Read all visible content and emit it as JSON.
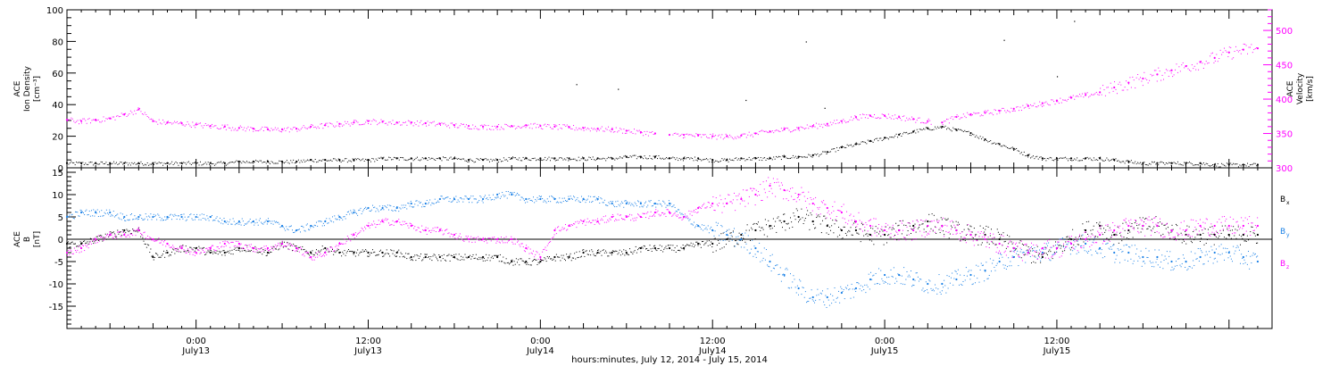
{
  "chart_data": [
    {
      "type": "scatter",
      "panel": "top",
      "ylabel_lines": [
        "ACE",
        "Ion Density",
        "[cm⁻³]"
      ],
      "ylim": [
        0,
        100
      ],
      "yticks": [
        0,
        20,
        40,
        60,
        80,
        100
      ],
      "y2label_lines": [
        "ACE",
        "Velocity",
        "[km/s]"
      ],
      "y2lim": [
        300,
        530
      ],
      "y2ticks": [
        300,
        350,
        400,
        450,
        500
      ],
      "grid": false,
      "xlim_hours": [
        0,
        84
      ],
      "series": [
        {
          "name": "Ion Density",
          "axis": "left",
          "color": "#000000",
          "x": [
            0,
            1,
            2,
            3,
            4,
            5,
            6,
            7,
            8,
            9,
            10,
            11,
            12,
            13,
            14,
            15,
            16,
            17,
            18,
            19,
            20,
            21,
            22,
            23,
            24,
            25,
            26,
            27,
            28,
            29,
            30,
            31,
            32,
            33,
            34,
            35,
            36,
            37,
            38,
            39,
            40,
            41,
            42,
            43,
            44,
            45,
            46,
            47,
            48,
            49,
            50,
            51,
            52,
            53,
            54,
            55,
            56,
            57,
            58,
            59,
            60,
            61,
            62,
            63,
            64,
            65,
            66,
            67,
            68,
            69,
            70,
            71,
            72,
            73,
            74,
            75,
            76,
            77,
            78,
            79,
            80,
            81,
            82,
            83
          ],
          "y": [
            3,
            3,
            3,
            3,
            3,
            3,
            3,
            3,
            3,
            3,
            3,
            3,
            4,
            4,
            4,
            4,
            4,
            5,
            5,
            5,
            5,
            5,
            6,
            6,
            6,
            6,
            6,
            6,
            5,
            5,
            5,
            6,
            6,
            6,
            6,
            6,
            6,
            6,
            6,
            7,
            7,
            7,
            6,
            6,
            6,
            5,
            5,
            6,
            6,
            6,
            7,
            7,
            8,
            10,
            13,
            15,
            17,
            19,
            21,
            23,
            25,
            26,
            24,
            22,
            18,
            15,
            12,
            8,
            6,
            6,
            6,
            6,
            6,
            5,
            4,
            3,
            3,
            3,
            3,
            3,
            2,
            2,
            2,
            2
          ]
        },
        {
          "name": "Velocity",
          "axis": "right",
          "color": "#ff00ff",
          "x": [
            0,
            1,
            2,
            3,
            4,
            5,
            6,
            7,
            8,
            9,
            10,
            11,
            12,
            13,
            14,
            15,
            16,
            17,
            18,
            19,
            20,
            21,
            22,
            23,
            24,
            25,
            26,
            27,
            28,
            29,
            30,
            31,
            32,
            33,
            34,
            35,
            36,
            37,
            38,
            39,
            40,
            41,
            42,
            43,
            44,
            45,
            46,
            47,
            48,
            49,
            50,
            51,
            52,
            53,
            54,
            55,
            56,
            57,
            58,
            59,
            60,
            61,
            62,
            63,
            64,
            65,
            66,
            67,
            68,
            69,
            70,
            71,
            72,
            73,
            74,
            75,
            76,
            77,
            78,
            79,
            80,
            81,
            82,
            83
          ],
          "y": [
            370,
            368,
            370,
            372,
            378,
            385,
            368,
            366,
            365,
            363,
            361,
            360,
            358,
            357,
            356,
            356,
            357,
            360,
            362,
            364,
            366,
            368,
            367,
            366,
            366,
            365,
            364,
            362,
            361,
            360,
            360,
            361,
            362,
            361,
            360,
            359,
            358,
            357,
            356,
            354,
            352,
            350,
            348,
            348,
            347,
            346,
            346,
            347,
            350,
            353,
            356,
            358,
            361,
            364,
            368,
            374,
            376,
            376,
            374,
            371,
            368,
            366,
            374,
            378,
            380,
            383,
            386,
            390,
            394,
            398,
            402,
            406,
            410,
            417,
            424,
            430,
            436,
            442,
            448,
            454,
            460,
            468,
            472,
            474
          ]
        }
      ],
      "spikes": [
        {
          "x": 63.6,
          "y": 100
        },
        {
          "x": 70.2,
          "y": 93
        },
        {
          "x": 51.5,
          "y": 80
        },
        {
          "x": 65.3,
          "y": 81
        },
        {
          "x": 35.5,
          "y": 53
        },
        {
          "x": 38.4,
          "y": 50
        },
        {
          "x": 47.3,
          "y": 43
        },
        {
          "x": 69.0,
          "y": 58
        },
        {
          "x": 52.8,
          "y": 38
        }
      ]
    },
    {
      "type": "scatter",
      "panel": "bottom",
      "ylabel_lines": [
        "ACE",
        "B",
        "[nT]"
      ],
      "ylim": [
        -20,
        16
      ],
      "yticks": [
        -15,
        -10,
        -5,
        0,
        5,
        10,
        15
      ],
      "zero_line": true,
      "grid": false,
      "xlim_hours": [
        0,
        84
      ],
      "xticks": [
        {
          "hour": 9,
          "line1": "0:00",
          "line2": "July13"
        },
        {
          "hour": 21,
          "line1": "12:00",
          "line2": "July13"
        },
        {
          "hour": 33,
          "line1": "0:00",
          "line2": "July14"
        },
        {
          "hour": 45,
          "line1": "12:00",
          "line2": "July14"
        },
        {
          "hour": 57,
          "line1": "0:00",
          "line2": "July15"
        },
        {
          "hour": 69,
          "line1": "12:00",
          "line2": "July15"
        }
      ],
      "xlabel": "hours:minutes, July 12, 2014 - July 15, 2014",
      "legend": [
        {
          "label": "B",
          "sub": "x",
          "color": "#000000"
        },
        {
          "label": "B",
          "sub": "y",
          "color": "#1a80e6"
        },
        {
          "label": "B",
          "sub": "z",
          "color": "#ff00ff"
        }
      ],
      "legend_position": "right",
      "series": [
        {
          "name": "Bx",
          "color": "#000000",
          "x": [
            0,
            1,
            2,
            3,
            4,
            5,
            6,
            7,
            8,
            9,
            10,
            11,
            12,
            13,
            14,
            15,
            16,
            17,
            18,
            19,
            20,
            21,
            22,
            23,
            24,
            25,
            26,
            27,
            28,
            29,
            30,
            31,
            32,
            33,
            34,
            35,
            36,
            37,
            38,
            39,
            40,
            41,
            42,
            43,
            44,
            45,
            46,
            47,
            48,
            49,
            50,
            51,
            52,
            53,
            54,
            55,
            56,
            57,
            58,
            59,
            60,
            61,
            62,
            63,
            64,
            65,
            66,
            67,
            68,
            69,
            70,
            71,
            72,
            73,
            74,
            75,
            76,
            77,
            78,
            79,
            80,
            81,
            82,
            83
          ],
          "y": [
            -1,
            -1,
            0,
            1,
            2,
            2,
            -4,
            -3,
            -2,
            -2,
            -3,
            -3,
            -2,
            -2,
            -3,
            -1,
            -2,
            -3,
            -2,
            -3,
            -3,
            -3,
            -3,
            -3,
            -4,
            -4,
            -4,
            -4,
            -4,
            -4,
            -4,
            -5,
            -5,
            -5,
            -4,
            -4,
            -3,
            -3,
            -3,
            -3,
            -2,
            -2,
            -2,
            -2,
            -1,
            -1,
            0,
            1,
            2,
            3,
            4,
            5,
            4,
            3,
            2,
            2,
            1,
            1,
            2,
            3,
            4,
            3,
            2,
            1,
            1,
            0,
            -2,
            -3,
            -4,
            -2,
            0,
            2,
            3,
            1,
            2,
            3,
            3,
            2,
            1,
            1,
            1,
            1,
            1,
            1
          ]
        },
        {
          "name": "By",
          "color": "#1a80e6",
          "x": [
            0,
            1,
            2,
            3,
            4,
            5,
            6,
            7,
            8,
            9,
            10,
            11,
            12,
            13,
            14,
            15,
            16,
            17,
            18,
            19,
            20,
            21,
            22,
            23,
            24,
            25,
            26,
            27,
            28,
            29,
            30,
            31,
            32,
            33,
            34,
            35,
            36,
            37,
            38,
            39,
            40,
            41,
            42,
            43,
            44,
            45,
            46,
            47,
            48,
            49,
            50,
            51,
            52,
            53,
            54,
            55,
            56,
            57,
            58,
            59,
            60,
            61,
            62,
            63,
            64,
            65,
            66,
            67,
            68,
            69,
            70,
            71,
            72,
            73,
            74,
            75,
            76,
            77,
            78,
            79,
            80,
            81,
            82,
            83
          ],
          "y": [
            5,
            6,
            6,
            6,
            5,
            5,
            5,
            5,
            5,
            5,
            5,
            4,
            4,
            4,
            4,
            3,
            2,
            3,
            4,
            5,
            6,
            7,
            7,
            7,
            8,
            8,
            9,
            9,
            9,
            9,
            10,
            10,
            9,
            9,
            9,
            9,
            9,
            9,
            8,
            8,
            8,
            8,
            8,
            5,
            3,
            2,
            1,
            0,
            -2,
            -5,
            -8,
            -11,
            -13,
            -13,
            -12,
            -11,
            -9,
            -8,
            -8,
            -9,
            -10,
            -10,
            -9,
            -8,
            -7,
            -5,
            -4,
            -3,
            -3,
            -2,
            -1,
            -1,
            -2,
            -3,
            -3,
            -4,
            -4,
            -5,
            -5,
            -4,
            -3,
            -3,
            -4,
            -5
          ]
        },
        {
          "name": "Bz",
          "color": "#ff00ff",
          "x": [
            0,
            1,
            2,
            3,
            4,
            5,
            6,
            7,
            8,
            9,
            10,
            11,
            12,
            13,
            14,
            15,
            16,
            17,
            18,
            19,
            20,
            21,
            22,
            23,
            24,
            25,
            26,
            27,
            28,
            29,
            30,
            31,
            32,
            33,
            34,
            35,
            36,
            37,
            38,
            39,
            40,
            41,
            42,
            43,
            44,
            45,
            46,
            47,
            48,
            49,
            50,
            51,
            52,
            53,
            54,
            55,
            56,
            57,
            58,
            59,
            60,
            61,
            62,
            63,
            64,
            65,
            66,
            67,
            68,
            69,
            70,
            71,
            72,
            73,
            74,
            75,
            76,
            77,
            78,
            79,
            80,
            81,
            82,
            83
          ],
          "y": [
            -3,
            -2,
            0,
            1,
            1,
            2,
            0,
            -1,
            -2,
            -3,
            -2,
            -1,
            -1,
            -2,
            -2,
            -1,
            -2,
            -4,
            -3,
            -1,
            1,
            3,
            4,
            4,
            3,
            2,
            2,
            1,
            0,
            0,
            0,
            0,
            -2,
            -4,
            2,
            3,
            4,
            4,
            5,
            5,
            5,
            6,
            6,
            5,
            7,
            8,
            8,
            9,
            10,
            12,
            11,
            10,
            8,
            7,
            6,
            4,
            3,
            2,
            2,
            2,
            3,
            3,
            2,
            1,
            0,
            -1,
            -2,
            -3,
            -2,
            -2,
            -1,
            0,
            1,
            2,
            3,
            3,
            3,
            2,
            2,
            3,
            3,
            3,
            3,
            3
          ]
        }
      ]
    }
  ]
}
